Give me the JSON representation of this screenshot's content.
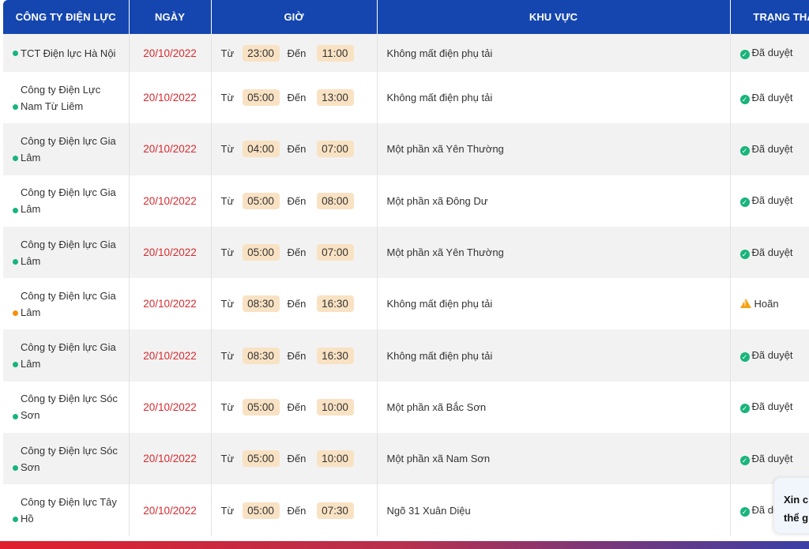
{
  "colors": {
    "header_bg": "#1546b0",
    "date_text": "#d72a2f",
    "pill_bg": "#f9e2c3",
    "dot_green": "#18b47b",
    "dot_orange": "#f5900a",
    "status_ok": "#18b47b",
    "status_warn": "#f5a214"
  },
  "headers": {
    "company": "CÔNG TY ĐIỆN LỰC",
    "date": "NGÀY",
    "time": "GIỜ",
    "area": "KHU VỰC",
    "status": "TRẠNG THÁI"
  },
  "labels": {
    "from": "Từ",
    "to": "Đến"
  },
  "rows": [
    {
      "company": "TCT Điện lực Hà Nội",
      "date": "20/10/2022",
      "from": "23:00",
      "to": "11:00",
      "area": "Không mất điện phụ tải",
      "status": "Đã duyệt",
      "status_icon": "check-circle-icon",
      "dot": "green"
    },
    {
      "company": "Công ty Điện Lực Nam Từ Liêm",
      "date": "20/10/2022",
      "from": "05:00",
      "to": "13:00",
      "area": "Không mất điện phụ tải",
      "status": "Đã duyệt",
      "status_icon": "check-circle-icon",
      "dot": "green"
    },
    {
      "company": "Công ty Điện lực Gia Lâm",
      "date": "20/10/2022",
      "from": "04:00",
      "to": "07:00",
      "area": "Một phần xã Yên Thường",
      "status": "Đã duyệt",
      "status_icon": "check-circle-icon",
      "dot": "green"
    },
    {
      "company": "Công ty Điện lực Gia Lâm",
      "date": "20/10/2022",
      "from": "05:00",
      "to": "08:00",
      "area": "Một phần xã Đông Dư",
      "status": "Đã duyệt",
      "status_icon": "check-circle-icon",
      "dot": "green"
    },
    {
      "company": "Công ty Điện lực Gia Lâm",
      "date": "20/10/2022",
      "from": "05:00",
      "to": "07:00",
      "area": "Một phần xã Yên Thường",
      "status": "Đã duyệt",
      "status_icon": "check-circle-icon",
      "dot": "green"
    },
    {
      "company": "Công ty Điện lực Gia Lâm",
      "date": "20/10/2022",
      "from": "08:30",
      "to": "16:30",
      "area": "Không mất điện phụ tải",
      "status": "Hoãn",
      "status_icon": "warning-icon",
      "dot": "orange"
    },
    {
      "company": "Công ty Điện lực Gia Lâm",
      "date": "20/10/2022",
      "from": "08:30",
      "to": "16:30",
      "area": "Không mất điện phụ tải",
      "status": "Đã duyệt",
      "status_icon": "check-circle-icon",
      "dot": "green"
    },
    {
      "company": "Công ty Điện lực Sóc Sơn",
      "date": "20/10/2022",
      "from": "05:00",
      "to": "10:00",
      "area": "Một phần xã Bắc Sơn",
      "status": "Đã duyệt",
      "status_icon": "check-circle-icon",
      "dot": "green"
    },
    {
      "company": "Công ty Điện lực Sóc Sơn",
      "date": "20/10/2022",
      "from": "05:00",
      "to": "10:00",
      "area": "Một phần xã Nam Sơn",
      "status": "Đã duyệt",
      "status_icon": "check-circle-icon",
      "dot": "green"
    },
    {
      "company": "Công ty Điện lực Tây Hồ",
      "date": "20/10/2022",
      "from": "05:00",
      "to": "07:30",
      "area": "Ngõ 31 Xuân Diệu",
      "status": "Đã duyệt",
      "status_icon": "check-circle-icon",
      "dot": "green"
    }
  ],
  "chat_popup": {
    "line1": "Xin c",
    "line2": "thể g"
  }
}
